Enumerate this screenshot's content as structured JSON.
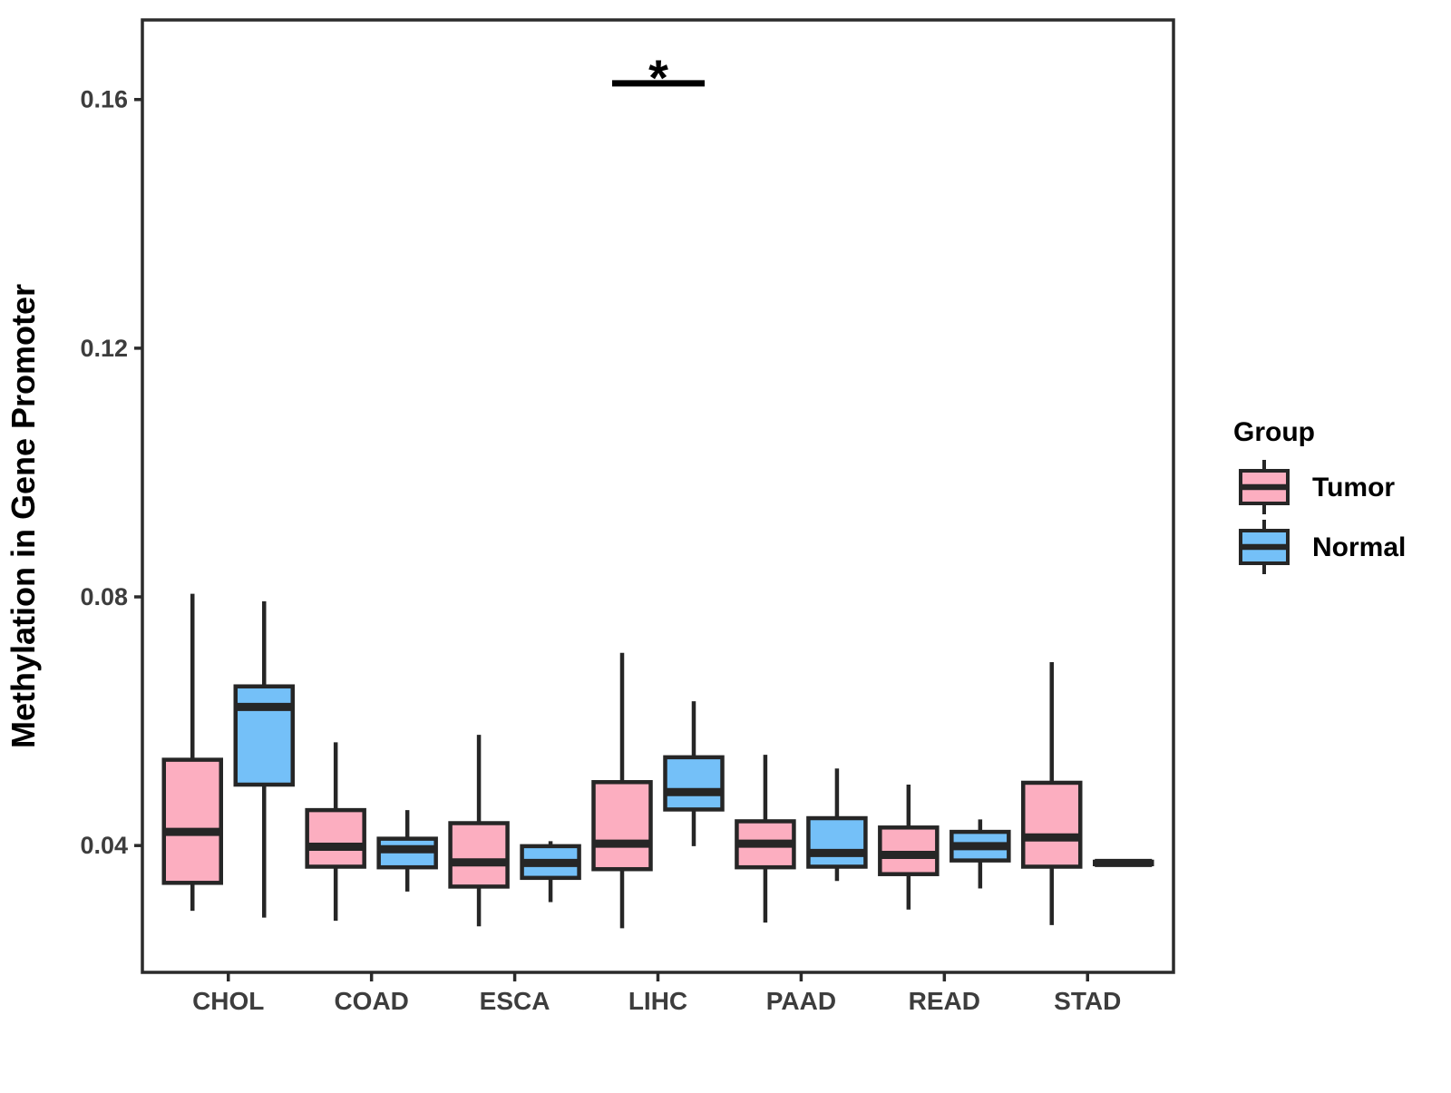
{
  "chart_data": {
    "type": "boxplot",
    "title": "",
    "xlabel": "",
    "ylabel": "Methylation in Gene Promoter",
    "categories": [
      "CHOL",
      "COAD",
      "ESCA",
      "LIHC",
      "PAAD",
      "READ",
      "STAD"
    ],
    "y_ticks": [
      0.04,
      0.08,
      0.12,
      0.16
    ],
    "ylim": [
      0.0196,
      0.1728
    ],
    "grid": "off",
    "legend_position": "right",
    "legend": {
      "title": "Group",
      "entries": [
        {
          "label": "Tumor",
          "color": "#FCAEC0"
        },
        {
          "label": "Normal",
          "color": "#74C0F8"
        }
      ]
    },
    "series": [
      {
        "name": "Tumor",
        "color": "#FCAEC0",
        "boxes": [
          {
            "category": "CHOL",
            "whisker_low": 0.0295,
            "q1": 0.034,
            "median": 0.0422,
            "q3": 0.0538,
            "whisker_high": 0.0805
          },
          {
            "category": "COAD",
            "whisker_low": 0.0279,
            "q1": 0.0366,
            "median": 0.0398,
            "q3": 0.0457,
            "whisker_high": 0.0566
          },
          {
            "category": "ESCA",
            "whisker_low": 0.027,
            "q1": 0.0334,
            "median": 0.0373,
            "q3": 0.0436,
            "whisker_high": 0.0578
          },
          {
            "category": "LIHC",
            "whisker_low": 0.0267,
            "q1": 0.0362,
            "median": 0.0403,
            "q3": 0.0502,
            "whisker_high": 0.071
          },
          {
            "category": "PAAD",
            "whisker_low": 0.0276,
            "q1": 0.0365,
            "median": 0.0403,
            "q3": 0.0439,
            "whisker_high": 0.0546
          },
          {
            "category": "READ",
            "whisker_low": 0.0297,
            "q1": 0.0354,
            "median": 0.0385,
            "q3": 0.0429,
            "whisker_high": 0.0498
          },
          {
            "category": "STAD",
            "whisker_low": 0.0272,
            "q1": 0.0366,
            "median": 0.0413,
            "q3": 0.0501,
            "whisker_high": 0.0695
          }
        ]
      },
      {
        "name": "Normal",
        "color": "#74C0F8",
        "boxes": [
          {
            "category": "CHOL",
            "whisker_low": 0.0284,
            "q1": 0.0498,
            "median": 0.0623,
            "q3": 0.0656,
            "whisker_high": 0.0793
          },
          {
            "category": "COAD",
            "whisker_low": 0.0326,
            "q1": 0.0365,
            "median": 0.0394,
            "q3": 0.0411,
            "whisker_high": 0.0457
          },
          {
            "category": "ESCA",
            "whisker_low": 0.0309,
            "q1": 0.0348,
            "median": 0.0372,
            "q3": 0.0399,
            "whisker_high": 0.0407
          },
          {
            "category": "LIHC",
            "whisker_low": 0.0399,
            "q1": 0.0458,
            "median": 0.0486,
            "q3": 0.0542,
            "whisker_high": 0.0632
          },
          {
            "category": "PAAD",
            "whisker_low": 0.0343,
            "q1": 0.0366,
            "median": 0.0388,
            "q3": 0.0444,
            "whisker_high": 0.0524
          },
          {
            "category": "READ",
            "whisker_low": 0.0331,
            "q1": 0.0376,
            "median": 0.0399,
            "q3": 0.0422,
            "whisker_high": 0.0442
          },
          {
            "category": "STAD",
            "whisker_low": 0.0366,
            "q1": 0.037,
            "median": 0.0372,
            "q3": 0.0374,
            "whisker_high": 0.0377
          }
        ]
      }
    ],
    "annotations": [
      {
        "label": "*",
        "category": "LIHC",
        "bar_value": 0.1626,
        "between": [
          "Tumor",
          "Normal"
        ]
      }
    ],
    "style_colors": {
      "box_stroke": "#262626",
      "axis_line": "#2b2b2b",
      "tick_text": "#3d3d3d",
      "background": "#ffffff"
    }
  }
}
